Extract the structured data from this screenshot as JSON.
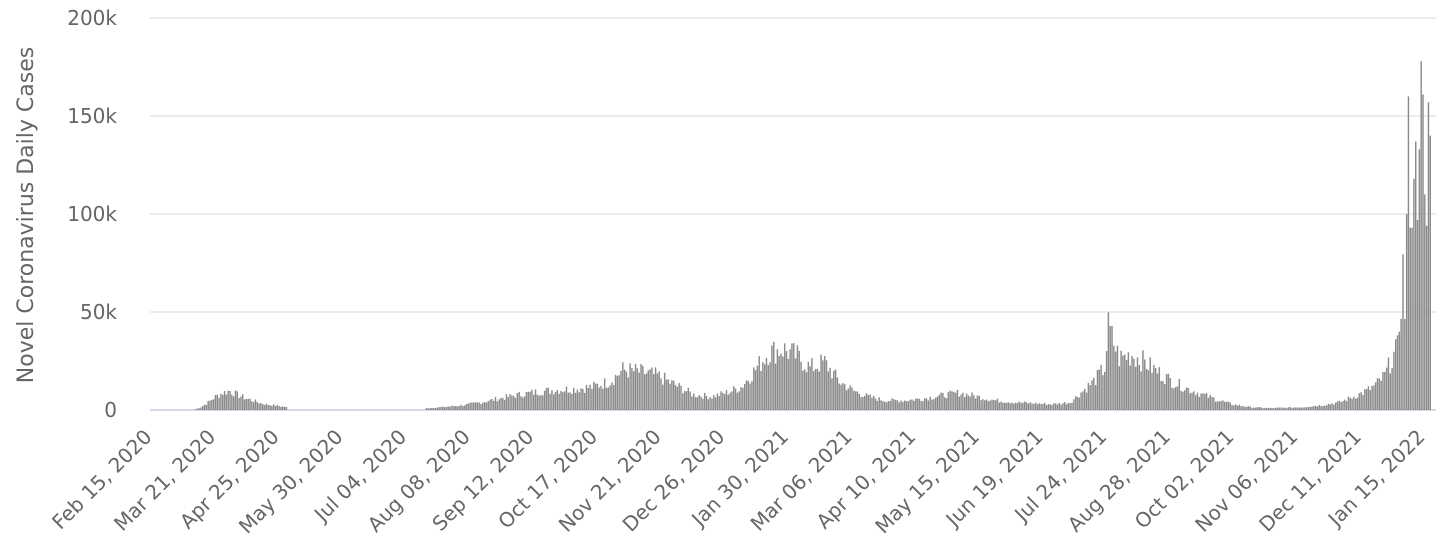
{
  "chart_data": {
    "type": "bar",
    "ylabel": "Novel Coronavirus Daily Cases",
    "ylim": [
      0,
      200000
    ],
    "yticks": [
      {
        "value": 0,
        "label": "0"
      },
      {
        "value": 50000,
        "label": "50k"
      },
      {
        "value": 100000,
        "label": "100k"
      },
      {
        "value": 150000,
        "label": "150k"
      },
      {
        "value": 200000,
        "label": "200k"
      }
    ],
    "xlim": [
      "2020-02-15",
      "2022-01-15"
    ],
    "xticks": [
      "Feb 15, 2020",
      "Mar 21, 2020",
      "Apr 25, 2020",
      "May 30, 2020",
      "Jul 04, 2020",
      "Aug 08, 2020",
      "Sep 12, 2020",
      "Oct 17, 2020",
      "Nov 21, 2020",
      "Dec 26, 2020",
      "Jan 30, 2021",
      "Mar 06, 2021",
      "Apr 10, 2021",
      "May 15, 2021",
      "Jun 19, 2021",
      "Jul 24, 2021",
      "Aug 28, 2021",
      "Oct 02, 2021",
      "Nov 06, 2021",
      "Dec 11, 2021",
      "Jan 15, 2022"
    ],
    "grid": true,
    "legend": "none",
    "bar_color": "#8a8a8a",
    "grid_color": "#e6e6e6",
    "series": [
      {
        "daily_values": [
          {
            "date": "2020-02-15",
            "value": 0
          },
          {
            "date": "2020-03-10",
            "value": 0
          },
          {
            "date": "2020-03-14",
            "value": 1500
          },
          {
            "date": "2020-03-18",
            "value": 4000
          },
          {
            "date": "2020-03-22",
            "value": 7000
          },
          {
            "date": "2020-03-26",
            "value": 9000
          },
          {
            "date": "2020-03-30",
            "value": 10000
          },
          {
            "date": "2020-04-03",
            "value": 8000
          },
          {
            "date": "2020-04-08",
            "value": 6000
          },
          {
            "date": "2020-04-13",
            "value": 4500
          },
          {
            "date": "2020-04-18",
            "value": 3000
          },
          {
            "date": "2020-04-23",
            "value": 2500
          },
          {
            "date": "2020-04-30",
            "value": 1500
          },
          {
            "date": "2020-05-01",
            "value": 0
          },
          {
            "date": "2020-07-15",
            "value": 0
          },
          {
            "date": "2020-07-16",
            "value": 1000
          },
          {
            "date": "2020-07-25",
            "value": 1500
          },
          {
            "date": "2020-08-05",
            "value": 2500
          },
          {
            "date": "2020-08-15",
            "value": 4000
          },
          {
            "date": "2020-08-25",
            "value": 6000
          },
          {
            "date": "2020-09-05",
            "value": 8000
          },
          {
            "date": "2020-09-15",
            "value": 9500
          },
          {
            "date": "2020-09-25",
            "value": 10500
          },
          {
            "date": "2020-10-05",
            "value": 11000
          },
          {
            "date": "2020-10-15",
            "value": 12000
          },
          {
            "date": "2020-10-25",
            "value": 15000
          },
          {
            "date": "2020-11-01",
            "value": 21000
          },
          {
            "date": "2020-11-10",
            "value": 20000
          },
          {
            "date": "2020-11-20",
            "value": 18000
          },
          {
            "date": "2020-11-30",
            "value": 13000
          },
          {
            "date": "2020-12-10",
            "value": 8000
          },
          {
            "date": "2020-12-20",
            "value": 7000
          },
          {
            "date": "2020-12-28",
            "value": 9000
          },
          {
            "date": "2021-01-05",
            "value": 12000
          },
          {
            "date": "2021-01-12",
            "value": 20000
          },
          {
            "date": "2021-01-20",
            "value": 30000
          },
          {
            "date": "2021-01-28",
            "value": 32000
          },
          {
            "date": "2021-02-05",
            "value": 28000
          },
          {
            "date": "2021-02-12",
            "value": 22000
          },
          {
            "date": "2021-02-20",
            "value": 25000
          },
          {
            "date": "2021-02-28",
            "value": 15000
          },
          {
            "date": "2021-03-08",
            "value": 10000
          },
          {
            "date": "2021-03-16",
            "value": 7000
          },
          {
            "date": "2021-03-25",
            "value": 5000
          },
          {
            "date": "2021-04-05",
            "value": 5000
          },
          {
            "date": "2021-04-15",
            "value": 6000
          },
          {
            "date": "2021-04-25",
            "value": 7500
          },
          {
            "date": "2021-05-05",
            "value": 9000
          },
          {
            "date": "2021-05-15",
            "value": 7000
          },
          {
            "date": "2021-05-25",
            "value": 5000
          },
          {
            "date": "2021-06-05",
            "value": 4000
          },
          {
            "date": "2021-06-15",
            "value": 3500
          },
          {
            "date": "2021-06-25",
            "value": 3000
          },
          {
            "date": "2021-07-05",
            "value": 4000
          },
          {
            "date": "2021-07-12",
            "value": 10000
          },
          {
            "date": "2021-07-18",
            "value": 15000
          },
          {
            "date": "2021-07-24",
            "value": 22000
          },
          {
            "date": "2021-07-26",
            "value": 43000
          },
          {
            "date": "2021-08-01",
            "value": 27000
          },
          {
            "date": "2021-08-08",
            "value": 29000
          },
          {
            "date": "2021-08-15",
            "value": 25000
          },
          {
            "date": "2021-08-22",
            "value": 20000
          },
          {
            "date": "2021-08-30",
            "value": 15000
          },
          {
            "date": "2021-09-08",
            "value": 11000
          },
          {
            "date": "2021-09-16",
            "value": 8000
          },
          {
            "date": "2021-09-25",
            "value": 5000
          },
          {
            "date": "2021-10-02",
            "value": 3000
          },
          {
            "date": "2021-10-12",
            "value": 1500
          },
          {
            "date": "2021-10-22",
            "value": 1000
          },
          {
            "date": "2021-11-01",
            "value": 1200
          },
          {
            "date": "2021-11-10",
            "value": 1500
          },
          {
            "date": "2021-11-20",
            "value": 2500
          },
          {
            "date": "2021-11-30",
            "value": 4000
          },
          {
            "date": "2021-12-08",
            "value": 7000
          },
          {
            "date": "2021-12-15",
            "value": 10000
          },
          {
            "date": "2021-12-20",
            "value": 13000
          },
          {
            "date": "2021-12-25",
            "value": 18000
          },
          {
            "date": "2021-12-29",
            "value": 27000
          },
          {
            "date": "2022-01-01",
            "value": 32000
          },
          {
            "date": "2022-01-03",
            "value": 60000
          },
          {
            "date": "2022-01-04",
            "value": 72000
          },
          {
            "date": "2022-01-05",
            "value": 53000
          },
          {
            "date": "2022-01-06",
            "value": 100000
          },
          {
            "date": "2022-01-07",
            "value": 160000
          },
          {
            "date": "2022-01-08",
            "value": 93000
          },
          {
            "date": "2022-01-09",
            "value": 93000
          },
          {
            "date": "2022-01-10",
            "value": 118000
          },
          {
            "date": "2022-01-11",
            "value": 137000
          },
          {
            "date": "2022-01-12",
            "value": 97000
          },
          {
            "date": "2022-01-13",
            "value": 133000
          },
          {
            "date": "2022-01-14",
            "value": 178000
          },
          {
            "date": "2022-01-15",
            "value": 161000
          },
          {
            "date": "2022-01-16",
            "value": 110000
          },
          {
            "date": "2022-01-17",
            "value": 94000
          },
          {
            "date": "2022-01-18",
            "value": 157000
          },
          {
            "date": "2022-01-19",
            "value": 140000
          }
        ]
      }
    ]
  }
}
